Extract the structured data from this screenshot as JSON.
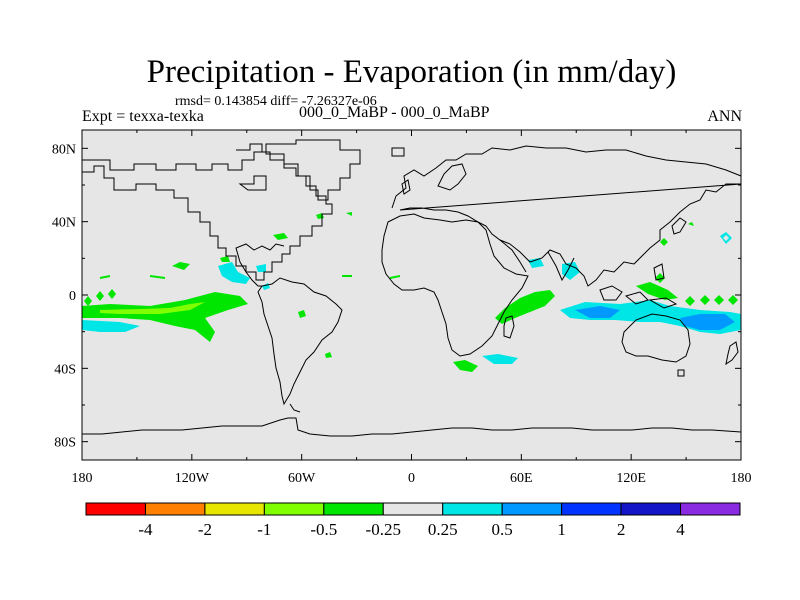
{
  "title": "Precipitation - Evaporation (in mm/day)",
  "stats": "rmsd= 0.143854 diff= -7.26327e-06",
  "experiment": "Expt = texxa-texka",
  "subtitle": "000_0_MaBP - 000_0_MaBP",
  "season": "ANN",
  "chart_data": {
    "type": "heatmap",
    "title": "Precipitation - Evaporation (in mm/day)",
    "map": "global cylindrical equidistant, land outlines",
    "x_ticks": [
      "180",
      "120W",
      "60W",
      "0",
      "60E",
      "120E",
      "180"
    ],
    "y_ticks": [
      "80N",
      "40N",
      "0",
      "40S",
      "80S"
    ],
    "lon_range": [
      -180,
      180
    ],
    "lat_range": [
      -90,
      90
    ],
    "background_value_range": [
      -0.25,
      0.25
    ],
    "contour_levels": [
      "-4",
      "-2",
      "-1",
      "-0.5",
      "-0.25",
      "0.25",
      "0.5",
      "1",
      "2",
      "4"
    ],
    "colors": [
      "#ff0000",
      "#ff7f00",
      "#e6e600",
      "#80ff00",
      "#00e600",
      "#e6e6e6",
      "#00e6e6",
      "#0099ff",
      "#0033ff",
      "#1414c8",
      "#8a2be2"
    ],
    "notable_anomalies": [
      {
        "region": "Central tropical Pacific",
        "lat": -8,
        "lon": [
          -180,
          -130
        ],
        "range": "-0.25 to -0.5"
      },
      {
        "region": "South Pacific east",
        "lat": -12,
        "lon": [
          -180,
          -170
        ],
        "range": "0.25 to 0.5"
      },
      {
        "region": "Eastern Pacific off Mexico",
        "lat": 10,
        "lon": [
          -110,
          -95
        ],
        "range": "0.25 to 0.5"
      },
      {
        "region": "Western Indian Ocean",
        "lat": -8,
        "lon": [
          45,
          65
        ],
        "range": "-0.25 to -0.5"
      },
      {
        "region": "Eastern Indian Ocean / Maritime Continent",
        "lat": -8,
        "lon": [
          85,
          125
        ],
        "range": "0.5 to 1"
      },
      {
        "region": "Southwest Pacific",
        "lat": -12,
        "lon": [
          150,
          175
        ],
        "range": "0.5 to 1"
      }
    ]
  }
}
